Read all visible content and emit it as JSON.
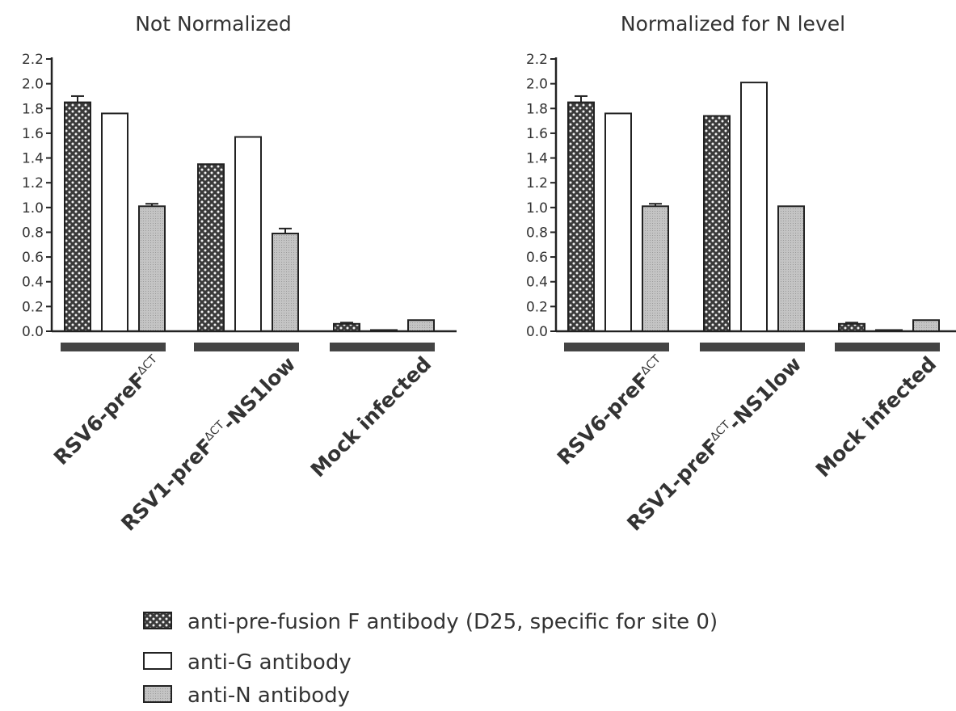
{
  "colors": {
    "axis": "#222222",
    "text": "#333333",
    "anti_F_fill": "#3a3a3a",
    "anti_F_dots": "#f2f2f2",
    "anti_G_fill": "#ffffff",
    "anti_N_fill": "#c4c4c4",
    "category_bar": "#444444"
  },
  "chart_data": [
    {
      "type": "bar",
      "title": "Not Normalized",
      "ylim": [
        0,
        2.2
      ],
      "yticks": [
        "0.0",
        "0.2",
        "0.4",
        "0.6",
        "0.8",
        "1.0",
        "1.2",
        "1.4",
        "1.6",
        "1.8",
        "2.0",
        "2.2"
      ],
      "categories": [
        {
          "main": "RSV6-preF",
          "sup": "ΔCT",
          "tail": ""
        },
        {
          "main": "RSV1-preF",
          "sup": "ΔCT",
          "tail": "-NS1low"
        },
        {
          "main": "Mock infected",
          "sup": "",
          "tail": ""
        }
      ],
      "series": [
        {
          "name": "anti-pre-fusion F antibody (D25, specific for site 0)",
          "pattern": "dots",
          "values": [
            1.85,
            1.35,
            0.06
          ],
          "errors": [
            0.05,
            0,
            0.01
          ]
        },
        {
          "name": "anti-G antibody",
          "pattern": "open",
          "values": [
            1.76,
            1.57,
            0.01
          ],
          "errors": [
            0,
            0,
            0
          ]
        },
        {
          "name": "anti-N antibody",
          "pattern": "gray",
          "values": [
            1.01,
            0.79,
            0.09
          ],
          "errors": [
            0.02,
            0.04,
            0
          ]
        }
      ],
      "grid": false
    },
    {
      "type": "bar",
      "title": "Normalized for N level",
      "ylim": [
        0,
        2.2
      ],
      "yticks": [
        "0.0",
        "0.2",
        "0.4",
        "0.6",
        "0.8",
        "1.0",
        "1.2",
        "1.4",
        "1.6",
        "1.8",
        "2.0",
        "2.2"
      ],
      "categories": [
        {
          "main": "RSV6-preF",
          "sup": "ΔCT",
          "tail": ""
        },
        {
          "main": "RSV1-preF",
          "sup": "ΔCT",
          "tail": "-NS1low"
        },
        {
          "main": "Mock infected",
          "sup": "",
          "tail": ""
        }
      ],
      "series": [
        {
          "name": "anti-pre-fusion F antibody (D25, specific for site 0)",
          "pattern": "dots",
          "values": [
            1.85,
            1.74,
            0.06
          ],
          "errors": [
            0.05,
            0,
            0.01
          ]
        },
        {
          "name": "anti-G antibody",
          "pattern": "open",
          "values": [
            1.76,
            2.01,
            0.01
          ],
          "errors": [
            0,
            0,
            0
          ]
        },
        {
          "name": "anti-N antibody",
          "pattern": "gray",
          "values": [
            1.01,
            1.01,
            0.09
          ],
          "errors": [
            0.02,
            0,
            0
          ]
        }
      ],
      "grid": false
    }
  ],
  "legend": {
    "placement": "bottom-center",
    "items": [
      {
        "label": "anti-pre-fusion F antibody (D25, specific for site 0)",
        "pattern": "dots"
      },
      {
        "label": "anti-G antibody",
        "pattern": "open"
      },
      {
        "label": "anti-N antibody",
        "pattern": "gray"
      }
    ]
  }
}
